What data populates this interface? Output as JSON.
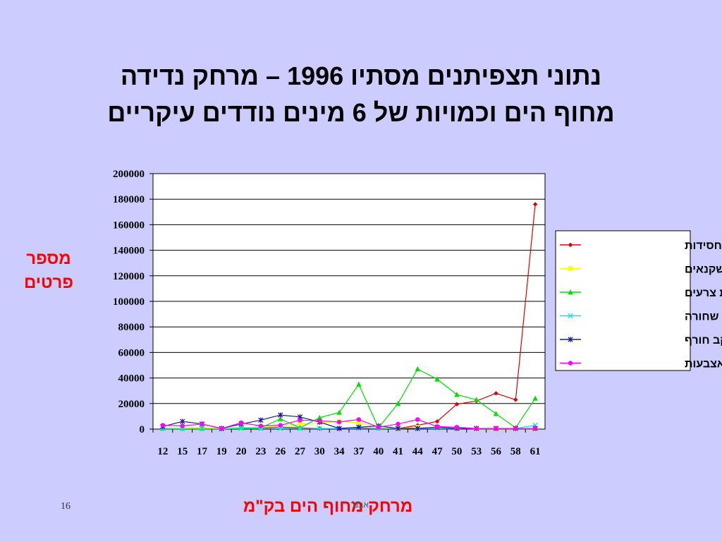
{
  "slide": {
    "title_line1": "נתוני תצפיתנים מסתיו 1996 – מרחק נדידה",
    "title_line2": "מחוף הים וכמויות של 6 מינים נודדים עיקריים",
    "ylabel_line1": "מספר",
    "ylabel_line2": "פרטים",
    "xlabel": "מרחק מחוף הים בק\"מ",
    "footer": "אבנר",
    "number": "16"
  },
  "chart_data": {
    "type": "line",
    "title": "",
    "xlabel": "מרחק מחוף הים בק\"מ",
    "ylabel": "מספר פרטים",
    "categories": [
      "12",
      "15",
      "17",
      "19",
      "20",
      "23",
      "26",
      "27",
      "30",
      "34",
      "37",
      "40",
      "41",
      "44",
      "47",
      "50",
      "53",
      "56",
      "58",
      "61"
    ],
    "ylim": [
      0,
      200000
    ],
    "yticks": [
      0,
      20000,
      40000,
      60000,
      80000,
      100000,
      120000,
      140000,
      160000,
      180000,
      200000
    ],
    "grid": true,
    "legend_position": "right",
    "series": [
      {
        "name": "חסידות",
        "color": "#e00000",
        "marker": "diamond",
        "values": [
          500,
          500,
          500,
          300,
          500,
          1000,
          1500,
          1000,
          500,
          500,
          1000,
          500,
          500,
          3000,
          6000,
          19500,
          22000,
          28000,
          23000,
          176000
        ]
      },
      {
        "name": "שקנאים",
        "color": "#ffff00",
        "marker": "square",
        "values": [
          500,
          500,
          1000,
          500,
          500,
          1500,
          2000,
          4000,
          5000,
          6000,
          5000,
          1000,
          500,
          1500,
          1000,
          500,
          300,
          300,
          300,
          300
        ]
      },
      {
        "name": "איית צרעים",
        "color": "#00e000",
        "marker": "triangle",
        "values": [
          500,
          500,
          500,
          300,
          1000,
          1000,
          8000,
          1000,
          9000,
          13000,
          35000,
          1000,
          20000,
          47000,
          39000,
          27000,
          23000,
          12000,
          1000,
          24000
        ]
      },
      {
        "name": "חסידה שחורה",
        "color": "#00e5ff",
        "marker": "x",
        "values": [
          300,
          300,
          300,
          300,
          500,
          500,
          500,
          500,
          500,
          500,
          500,
          500,
          500,
          500,
          500,
          500,
          500,
          500,
          500,
          3000
        ]
      },
      {
        "name": "עקב חורף",
        "color": "#1a1aa0",
        "marker": "star",
        "values": [
          2000,
          6000,
          4000,
          500,
          4000,
          7000,
          11000,
          9500,
          5500,
          500,
          1500,
          2500,
          500,
          500,
          1500,
          500,
          500,
          500,
          500,
          500
        ]
      },
      {
        "name": "נץ קצר אצבעות",
        "color": "#ff00ff",
        "marker": "circle",
        "values": [
          3000,
          2500,
          4000,
          500,
          5000,
          2500,
          3000,
          7000,
          6500,
          5500,
          7500,
          1500,
          4000,
          7500,
          2000,
          1500,
          500,
          500,
          500,
          500
        ]
      }
    ]
  }
}
